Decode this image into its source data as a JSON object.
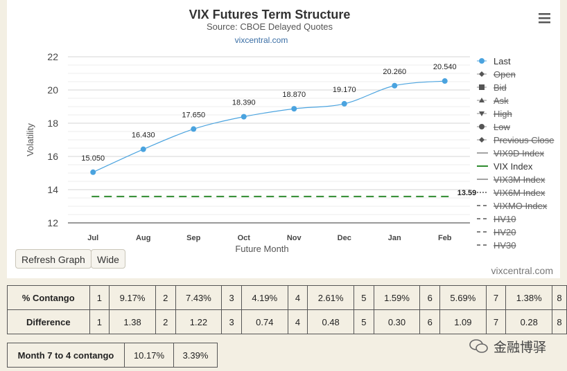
{
  "header": {
    "title": "VIX Futures Term Structure",
    "subtitle": "Source: CBOE Delayed Quotes",
    "site": "vixcentral.com",
    "menu_icon": "hamburger-icon"
  },
  "chart_data": {
    "type": "line",
    "title": "VIX Futures Term Structure",
    "subtitle": "Source: CBOE Delayed Quotes",
    "xlabel": "Future Month",
    "ylabel": "Volatility",
    "categories": [
      "Jul",
      "Aug",
      "Sep",
      "Oct",
      "Nov",
      "Dec",
      "Jan",
      "Feb"
    ],
    "ylim": [
      12,
      22
    ],
    "yticks": [
      "12",
      "14",
      "16",
      "18",
      "20",
      "22"
    ],
    "grid": true,
    "legend_position": "right",
    "series": [
      {
        "name": "Last",
        "values": [
          15.05,
          16.43,
          17.65,
          18.39,
          18.87,
          19.17,
          20.26,
          20.54
        ],
        "labels": [
          "15.050",
          "16.430",
          "17.650",
          "18.390",
          "18.870",
          "19.170",
          "20.260",
          "20.540"
        ],
        "color": "#4aa3df"
      },
      {
        "name": "VIX Index",
        "value": 13.59,
        "label": "13.59",
        "color": "#2e8b2e"
      }
    ],
    "legend": [
      {
        "name": "Last",
        "active": true,
        "symbol": "circle",
        "color": "#4aa3df"
      },
      {
        "name": "Open",
        "active": false,
        "symbol": "diamond"
      },
      {
        "name": "Bid",
        "active": false,
        "symbol": "square"
      },
      {
        "name": "Ask",
        "active": false,
        "symbol": "triangle"
      },
      {
        "name": "High",
        "active": false,
        "symbol": "triangle-down"
      },
      {
        "name": "Low",
        "active": false,
        "symbol": "circle"
      },
      {
        "name": "Previous Close",
        "active": false,
        "symbol": "diamond"
      },
      {
        "name": "VIX9D Index",
        "active": false,
        "symbol": "line"
      },
      {
        "name": "VIX Index",
        "active": true,
        "symbol": "line",
        "color": "#2e8b2e"
      },
      {
        "name": "VIX3M Index",
        "active": false,
        "symbol": "line"
      },
      {
        "name": "VIX6M Index",
        "active": false,
        "symbol": "dotted"
      },
      {
        "name": "VIXMO Index",
        "active": false,
        "symbol": "dashdot"
      },
      {
        "name": "HV10",
        "active": false,
        "symbol": "dashdot"
      },
      {
        "name": "HV20",
        "active": false,
        "symbol": "dashdot"
      },
      {
        "name": "HV30",
        "active": false,
        "symbol": "dashdot"
      }
    ]
  },
  "buttons": {
    "refresh": "Refresh Graph",
    "wide": "Wide"
  },
  "footer_site": "vixcentral.com",
  "contango_table": {
    "rows": [
      {
        "label": "% Contango",
        "cells": [
          "1",
          "9.17%",
          "2",
          "7.43%",
          "3",
          "4.19%",
          "4",
          "2.61%",
          "5",
          "1.59%",
          "6",
          "5.69%",
          "7",
          "1.38%",
          "8"
        ]
      },
      {
        "label": "Difference",
        "cells": [
          "1",
          "1.38",
          "2",
          "1.22",
          "3",
          "0.74",
          "4",
          "0.48",
          "5",
          "0.30",
          "6",
          "1.09",
          "7",
          "0.28",
          "8"
        ]
      }
    ]
  },
  "month_contango": {
    "label": "Month 7 to 4 contango",
    "values": [
      "10.17%",
      "3.39%"
    ]
  },
  "brand_watermark": "金融博驿"
}
